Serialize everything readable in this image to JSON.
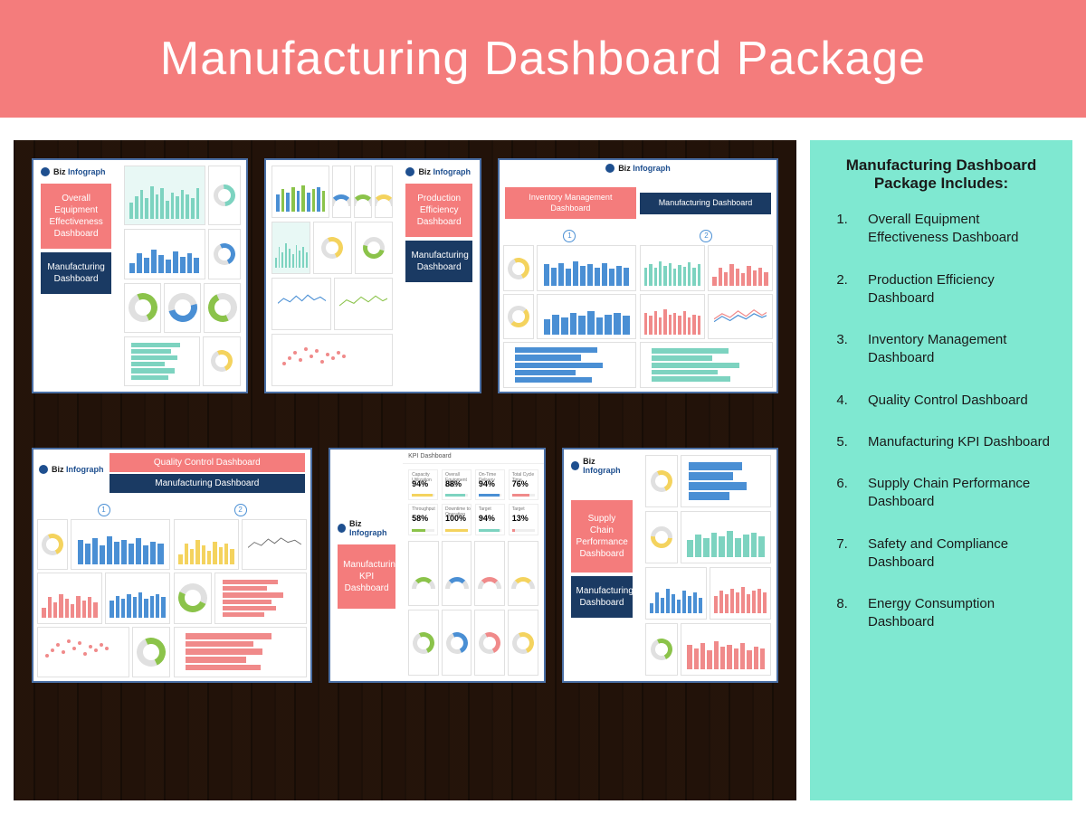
{
  "colors": {
    "header_bg": "#f47c7c",
    "side_bg": "#7fe8d1",
    "wood_bg": "#3f2e20",
    "thumb_border": "#4a6fa5",
    "tag_coral": "#f47c7c",
    "tag_navy": "#1a3a63",
    "chart_blue": "#4a8fd4",
    "chart_teal": "#7dd3c0",
    "chart_yellow": "#f4d35e",
    "chart_coral": "#f08a8a",
    "chart_green": "#8bc34a"
  },
  "header": {
    "title": "Manufacturing Dashboard Package",
    "title_fontsize": 52,
    "title_color": "#ffffff"
  },
  "logo": {
    "brand_a": "Biz",
    "brand_b": "Infograph"
  },
  "thumbnails": [
    {
      "id": "oee",
      "tag_coral": "Overall Equipment Effectiveness Dashboard",
      "tag_navy": "Manufacturing Dashboard"
    },
    {
      "id": "prod",
      "tag_coral": "Production Efficiency Dashboard",
      "tag_navy": "Manufacturing Dashboard"
    },
    {
      "id": "inv",
      "tag_coral": "Inventory Management Dashboard",
      "tag_navy": "Manufacturing Dashboard",
      "num1": "1",
      "num2": "2"
    },
    {
      "id": "qc",
      "tag_coral": "Quality Control Dashboard",
      "tag_navy": "Manufacturing Dashboard",
      "num1": "1",
      "num2": "2"
    },
    {
      "id": "kpi",
      "tag_coral": "Manufacturing KPI Dashboard",
      "kpi_header": "KPI Dashboard",
      "kpi_cells": [
        {
          "label": "Capacity Utilization",
          "val": "94%",
          "color": "#f4d35e",
          "w": "94%"
        },
        {
          "label": "Overall Equipment Effect.",
          "val": "88%",
          "color": "#7dd3c0",
          "w": "88%"
        },
        {
          "label": "On-Time Delivery",
          "val": "94%",
          "color": "#4a8fd4",
          "w": "94%"
        },
        {
          "label": "Total Cycle Time",
          "val": "76%",
          "color": "#f08a8a",
          "w": "76%"
        },
        {
          "label": "Throughput",
          "val": "58%",
          "color": "#8bc34a",
          "w": "58%"
        },
        {
          "label": "Downtime to Operating",
          "val": "100%",
          "color": "#f4d35e",
          "w": "100%"
        },
        {
          "label": "Target",
          "val": "94%",
          "color": "#7dd3c0",
          "w": "94%"
        },
        {
          "label": "Target",
          "val": "13%",
          "color": "#f08a8a",
          "w": "13%"
        }
      ]
    },
    {
      "id": "scp",
      "tag_coral": "Supply Chain Performance Dashboard",
      "tag_navy": "Manufacturing Dashboard"
    }
  ],
  "side": {
    "heading": "Manufacturing Dashboard Package Includes:",
    "items": [
      "Overall Equipment Effectiveness Dashboard",
      "Production Efficiency Dashboard",
      "Inventory Management Dashboard",
      "Quality Control Dashboard",
      "Manufacturing KPI Dashboard",
      "Supply Chain Performance Dashboard",
      "Safety and Compliance Dashboard",
      "Energy Consumption Dashboard"
    ]
  },
  "mini_bars": {
    "a": [
      40,
      55,
      70,
      50,
      80,
      60,
      75,
      45,
      65,
      55,
      70,
      60,
      50,
      75
    ],
    "b": [
      30,
      60,
      45,
      70,
      55,
      40,
      65,
      50,
      60,
      45
    ],
    "c": [
      70,
      60,
      75,
      55,
      80,
      65,
      70,
      60,
      75,
      55,
      65,
      60
    ],
    "d": [
      50,
      65,
      55,
      70,
      60,
      75,
      55,
      65,
      70,
      60
    ],
    "e": [
      60,
      72,
      58,
      80,
      66,
      74,
      55,
      68,
      62,
      78,
      60,
      70
    ]
  }
}
